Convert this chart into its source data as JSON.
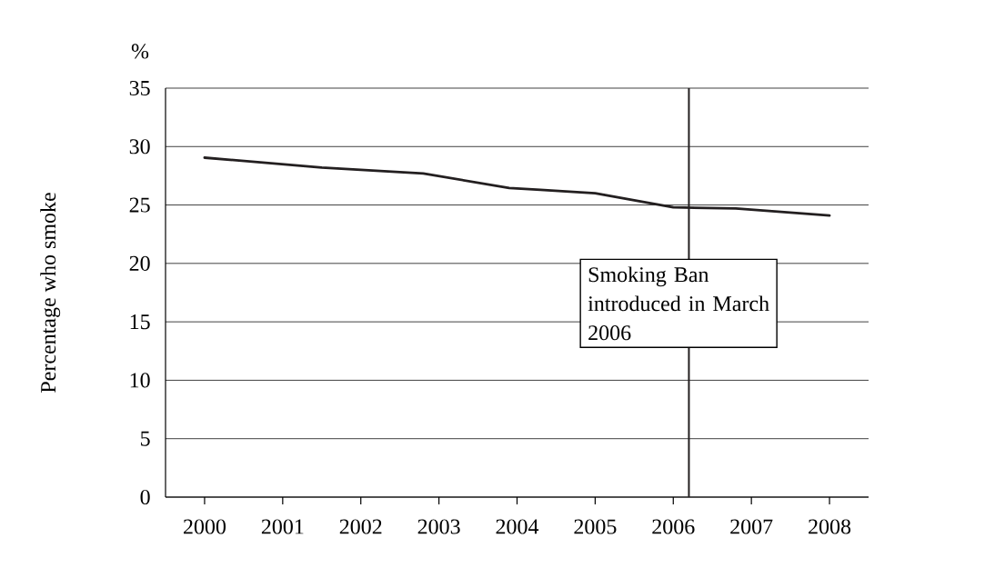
{
  "chart_data": {
    "type": "line",
    "ylabel": "Percentage who smoke",
    "annotations": [
      "%"
    ],
    "x": [
      2000,
      2001.5,
      2002.8,
      2003.9,
      2004.3,
      2005,
      2006,
      2006.8,
      2008
    ],
    "series": [
      {
        "color": "#231f20",
        "values": [
          29.05,
          28.2,
          27.7,
          26.45,
          26.3,
          26.0,
          24.8,
          24.7,
          24.1
        ]
      }
    ],
    "xlim": [
      1999.5,
      2008.5
    ],
    "xticks": [
      2000,
      2001,
      2002,
      2003,
      2004,
      2005,
      2006,
      2007,
      2008
    ],
    "ylim": [
      0,
      35
    ],
    "yticks": [
      0,
      5,
      10,
      15,
      20,
      25,
      30,
      35
    ],
    "grid": "y",
    "marker": "none",
    "line_style": "solid",
    "ref_lines": [
      {
        "axis": "x",
        "value": 2006.2,
        "label": "Smoking Ban introduced in March 2006",
        "color": "#231f20"
      }
    ]
  }
}
